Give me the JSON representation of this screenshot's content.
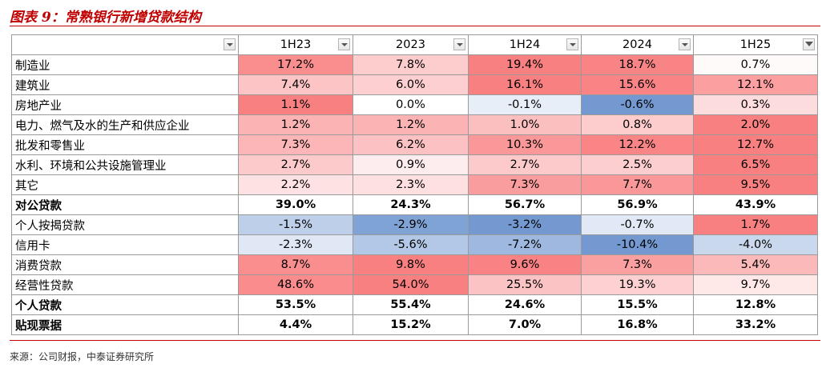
{
  "title": "图表 9：常熟银行新增贷款结构",
  "source": "来源：公司财报，中泰证券研究所",
  "chart_data": {
    "type": "heatmap",
    "columns": [
      "1H23",
      "2023",
      "1H24",
      "2024",
      "1H25"
    ],
    "rows": [
      {
        "label": "制造业",
        "values": [
          "17.2%",
          "7.8%",
          "19.4%",
          "18.7%",
          "0.7%"
        ],
        "nums": [
          17.2,
          7.8,
          19.4,
          18.7,
          0.7
        ],
        "bold": false
      },
      {
        "label": "建筑业",
        "values": [
          "7.4%",
          "6.0%",
          "16.1%",
          "15.6%",
          "12.1%"
        ],
        "nums": [
          7.4,
          6.0,
          16.1,
          15.6,
          12.1
        ],
        "bold": false
      },
      {
        "label": "房地产业",
        "values": [
          "1.1%",
          "0.0%",
          "-0.1%",
          "-0.6%",
          "0.3%"
        ],
        "nums": [
          1.1,
          0.0,
          -0.1,
          -0.6,
          0.3
        ],
        "bold": false
      },
      {
        "label": "电力、燃气及水的生产和供应企业",
        "values": [
          "1.2%",
          "1.2%",
          "1.0%",
          "0.8%",
          "2.0%"
        ],
        "nums": [
          1.2,
          1.2,
          1.0,
          0.8,
          2.0
        ],
        "bold": false
      },
      {
        "label": "批发和零售业",
        "values": [
          "7.3%",
          "6.2%",
          "10.3%",
          "12.2%",
          "12.7%"
        ],
        "nums": [
          7.3,
          6.2,
          10.3,
          12.2,
          12.7
        ],
        "bold": false
      },
      {
        "label": "水利、环境和公共设施管理业",
        "values": [
          "2.7%",
          "0.9%",
          "2.7%",
          "2.5%",
          "6.5%"
        ],
        "nums": [
          2.7,
          0.9,
          2.7,
          2.5,
          6.5
        ],
        "bold": false
      },
      {
        "label": "其它",
        "values": [
          "2.2%",
          "2.3%",
          "7.3%",
          "7.7%",
          "9.5%"
        ],
        "nums": [
          2.2,
          2.3,
          7.3,
          7.7,
          9.5
        ],
        "bold": false
      },
      {
        "label": "对公贷款",
        "values": [
          "39.0%",
          "24.3%",
          "56.7%",
          "56.9%",
          "43.9%"
        ],
        "nums": [
          39.0,
          24.3,
          56.7,
          56.9,
          43.9
        ],
        "bold": true
      },
      {
        "label": "个人按揭贷款",
        "values": [
          "-1.5%",
          "-2.9%",
          "-3.2%",
          "-0.7%",
          "1.7%"
        ],
        "nums": [
          -1.5,
          -2.9,
          -3.2,
          -0.7,
          1.7
        ],
        "bold": false
      },
      {
        "label": "信用卡",
        "values": [
          "-2.3%",
          "-5.6%",
          "-7.2%",
          "-10.4%",
          "-4.0%"
        ],
        "nums": [
          -2.3,
          -5.6,
          -7.2,
          -10.4,
          -4.0
        ],
        "bold": false
      },
      {
        "label": "消费贷款",
        "values": [
          "8.7%",
          "9.8%",
          "9.6%",
          "7.3%",
          "5.4%"
        ],
        "nums": [
          8.7,
          9.8,
          9.6,
          7.3,
          5.4
        ],
        "bold": false
      },
      {
        "label": "经营性贷款",
        "values": [
          "48.6%",
          "54.0%",
          "25.5%",
          "19.3%",
          "9.7%"
        ],
        "nums": [
          48.6,
          54.0,
          25.5,
          19.3,
          9.7
        ],
        "bold": false
      },
      {
        "label": "个人贷款",
        "values": [
          "53.5%",
          "55.4%",
          "24.6%",
          "15.5%",
          "12.8%"
        ],
        "nums": [
          53.5,
          55.4,
          24.6,
          15.5,
          12.8
        ],
        "bold": true
      },
      {
        "label": "贴现票据",
        "values": [
          "4.4%",
          "15.2%",
          "7.0%",
          "16.8%",
          "33.2%"
        ],
        "nums": [
          4.4,
          15.2,
          7.0,
          16.8,
          33.2
        ],
        "bold": true
      }
    ],
    "color_scale": {
      "negative": "#5a87c8",
      "zero": "#ffffff",
      "positive": "#f8696b"
    },
    "grid": true
  }
}
